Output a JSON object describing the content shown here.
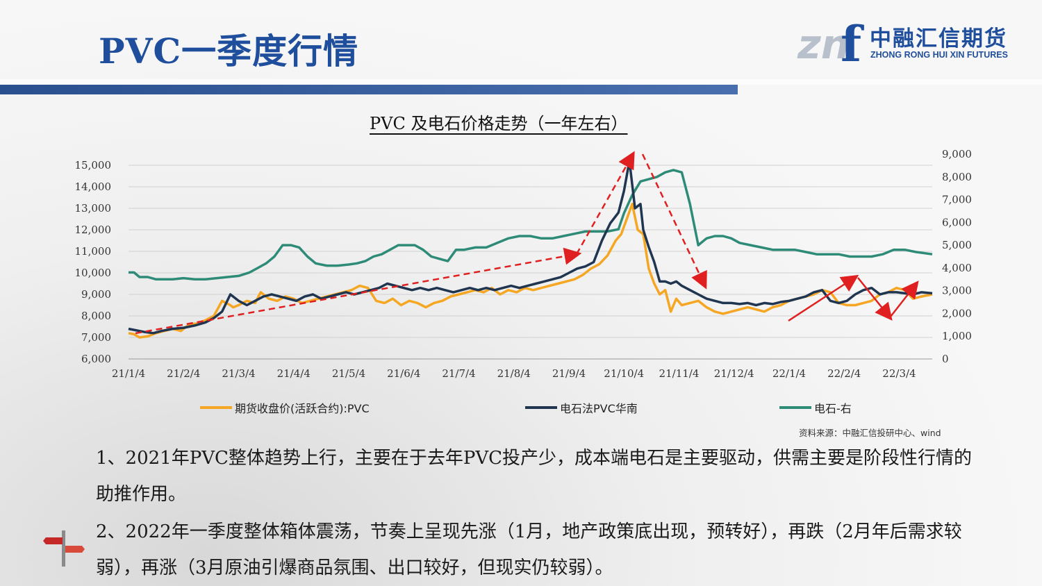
{
  "page": {
    "title": "PVC一季度行情",
    "logo": {
      "mark": "zn",
      "letter": "f",
      "cn": "中融汇信期货",
      "en": "ZHONG RONG HUI XIN FUTURES"
    },
    "chart_title": "PVC 及电石价格走势（一年左右）",
    "source": "资料来源：中融汇信投研中心、wind",
    "paragraphs": [
      "1、2021年PVC整体趋势上行，主要在于去年PVC投产少，成本端电石是主要驱动，供需主要是阶段性行情的助推作用。",
      "2、2022年一季度整体箱体震荡，节奏上呈现先涨（1月，地产政策底出现，预转好），再跌（2月年后需求较弱），再涨（3月原油引爆商品氛围、出口较好，但现实仍较弱）。"
    ]
  },
  "chart_data": {
    "type": "line",
    "categories": [
      "21/1/4",
      "21/2/4",
      "21/3/4",
      "21/4/4",
      "21/5/4",
      "21/6/4",
      "21/7/4",
      "21/8/4",
      "21/9/4",
      "21/10/4",
      "21/11/4",
      "21/12/4",
      "22/1/4",
      "22/2/4",
      "22/3/4"
    ],
    "left_ticks": [
      "15,000",
      "14,000",
      "13,000",
      "12,000",
      "11,000",
      "10,000",
      "9,000",
      "8,000",
      "7,000",
      "6,000"
    ],
    "right_ticks": [
      "9,000",
      "8,000",
      "7,000",
      "6,000",
      "5,000",
      "4,000",
      "3,000",
      "2,000",
      "1,000",
      "0"
    ],
    "ylim_left": [
      6000,
      15000
    ],
    "ylim_right": [
      0,
      9000
    ],
    "x_range": [
      0,
      14.6
    ],
    "colors": {
      "pvc_futures": "#f5a623",
      "pvc_south": "#1f3550",
      "carbide": "#2e8b77",
      "arrow_dashed": "#e02020",
      "arrow_solid": "#e02020"
    },
    "series": [
      {
        "name": "期货收盘价(活跃合约):PVC",
        "axis": "left",
        "x": [
          0,
          0.1,
          0.2,
          0.35,
          0.5,
          0.65,
          0.8,
          0.95,
          1.1,
          1.25,
          1.4,
          1.55,
          1.7,
          1.85,
          1.9,
          2.0,
          2.15,
          2.3,
          2.4,
          2.55,
          2.7,
          2.85,
          3.0,
          3.15,
          3.3,
          3.45,
          3.6,
          3.75,
          3.9,
          4.05,
          4.2,
          4.35,
          4.5,
          4.65,
          4.8,
          4.95,
          5.1,
          5.25,
          5.4,
          5.55,
          5.7,
          5.85,
          6.0,
          6.15,
          6.3,
          6.45,
          6.6,
          6.75,
          6.9,
          7.05,
          7.2,
          7.35,
          7.5,
          7.65,
          7.8,
          7.95,
          8.1,
          8.25,
          8.4,
          8.55,
          8.7,
          8.85,
          8.95,
          9.05,
          9.15,
          9.25,
          9.35,
          9.45,
          9.55,
          9.65,
          9.75,
          9.85,
          9.95,
          10.05,
          10.2,
          10.35,
          10.5,
          10.65,
          10.8,
          10.95,
          11.1,
          11.25,
          11.4,
          11.55,
          11.7,
          11.85,
          12.0,
          12.15,
          12.3,
          12.45,
          12.6,
          12.75,
          12.9,
          13.05,
          13.2,
          13.35,
          13.5,
          13.65,
          13.8,
          13.95,
          14.1,
          14.25,
          14.4,
          14.6
        ],
        "y": [
          7200,
          7150,
          7000,
          7050,
          7200,
          7300,
          7400,
          7300,
          7600,
          7650,
          7800,
          8000,
          8700,
          8500,
          8400,
          8500,
          8700,
          8600,
          9100,
          8800,
          8700,
          8900,
          8800,
          8600,
          8700,
          8800,
          8900,
          9000,
          9100,
          9200,
          9400,
          9300,
          8700,
          8600,
          8800,
          8500,
          8700,
          8600,
          8400,
          8600,
          8700,
          8900,
          9000,
          9100,
          9200,
          9100,
          9300,
          9000,
          9200,
          9100,
          9300,
          9200,
          9300,
          9400,
          9500,
          9600,
          9700,
          9900,
          10200,
          10400,
          10800,
          11500,
          11800,
          12500,
          13200,
          12000,
          11800,
          10200,
          9500,
          9000,
          9200,
          8200,
          8800,
          8500,
          8600,
          8700,
          8400,
          8200,
          8100,
          8200,
          8300,
          8400,
          8300,
          8200,
          8400,
          8500,
          8700,
          8800,
          8900,
          9000,
          9200,
          9100,
          8600,
          8500,
          8500,
          8600,
          8700,
          9000,
          9100,
          9300,
          9200,
          8800,
          8900,
          9000
        ],
        "line_points": "185,481 191,483 197,487 206,485 215,481 224,478 233,475 242,478 251,469 260,467 269,462 278,456 287,434 296,440 299,443 305,440 314,434 323,437 329,422 338,431 347,434 356,428 365,431 374,437 383,434 392,431 401,428 410,425 419,422 428,419 437,413 446,416 455,434 464,437 473,431 482,440 491,434 500,437 509,443 518,437 527,434 536,428 545,425 554,422 563,419 572,422 581,416 590,425 599,419 608,422 617,416 626,419 635,416 644,413 653,410 662,407 671,404 680,398 689,388 698,382 707,370 716,348 722,339 728,317 734,296 740,333 746,339 752,388 758,410 764,425 770,419 776,450 782,431 788,440 794,437 803,434 812,443 821,450 830,453 839,450 848,447 857,443 866,447 875,450 884,443 893,440 902,434 911,431 920,428 929,425 938,419 947,422 956,437 965,440 974,440 983,437 992,434 1001,425 1010,422 1019,416 1028,419 1037,431 1046,428 1055,425"
      },
      {
        "name": "电石法PVC华南",
        "axis": "left",
        "x": [
          0,
          0.1,
          0.3,
          0.45,
          0.6,
          0.8,
          1.0,
          1.2,
          1.4,
          1.55,
          1.7,
          1.85,
          2.0,
          2.15,
          2.3,
          2.45,
          2.6,
          2.75,
          2.9,
          3.05,
          3.2,
          3.35,
          3.5,
          3.65,
          3.8,
          3.95,
          4.1,
          4.25,
          4.4,
          4.55,
          4.7,
          4.85,
          5.0,
          5.15,
          5.3,
          5.45,
          5.6,
          5.75,
          5.9,
          6.05,
          6.2,
          6.35,
          6.5,
          6.65,
          6.8,
          6.95,
          7.1,
          7.25,
          7.4,
          7.55,
          7.7,
          7.85,
          8.0,
          8.15,
          8.3,
          8.45,
          8.6,
          8.75,
          8.9,
          9.0,
          9.1,
          9.2,
          9.3,
          9.35,
          9.45,
          9.55,
          9.65,
          9.75,
          9.85,
          9.95,
          10.05,
          10.2,
          10.35,
          10.5,
          10.65,
          10.8,
          10.95,
          11.1,
          11.25,
          11.4,
          11.55,
          11.7,
          11.85,
          12.0,
          12.15,
          12.3,
          12.45,
          12.6,
          12.75,
          12.9,
          13.05,
          13.2,
          13.35,
          13.5,
          13.65,
          13.8,
          13.95,
          14.1,
          14.25,
          14.4,
          14.6
        ],
        "y": [
          7400,
          7350,
          7250,
          7200,
          7300,
          7400,
          7450,
          7550,
          7700,
          7900,
          8200,
          9000,
          8700,
          8500,
          8700,
          8900,
          9000,
          8900,
          8800,
          8700,
          8900,
          9000,
          8800,
          8900,
          9000,
          9100,
          9000,
          9100,
          9200,
          9300,
          9500,
          9400,
          9300,
          9200,
          9300,
          9200,
          9300,
          9200,
          9100,
          9200,
          9300,
          9200,
          9300,
          9200,
          9300,
          9400,
          9300,
          9400,
          9500,
          9600,
          9700,
          9800,
          10000,
          10200,
          10300,
          10500,
          11500,
          12300,
          12800,
          13800,
          15200,
          13000,
          13200,
          12000,
          11200,
          10500,
          9600,
          9600,
          9500,
          9600,
          9400,
          9200,
          9000,
          8800,
          8700,
          8600,
          8600,
          8550,
          8600,
          8500,
          8600,
          8550,
          8650,
          8700,
          8800,
          8900,
          9100,
          9200,
          8700,
          8600,
          8700,
          9000,
          9200,
          9300,
          9000,
          9100,
          9100,
          9050,
          9000,
          9100,
          9050
        ],
        "line_points": "185,472 191,474 203,477 212,479 221,475 233,472 245,471 257,468 269,463 278,457 287,447 296,425 305,431 314,437 323,431 332,425 341,422 350,425 359,428 368,431 377,425 386,422 395,428 404,425 413,422 422,419 431,422 440,419 449,416 458,413 467,407 476,410 485,413 494,416 503,413 512,416 521,413 530,416 539,419 548,416 557,413 566,416 575,413 584,416 593,413 602,410 611,413 620,410 629,407 638,404 647,401 656,398 665,391 674,385 683,382 692,376 701,345 710,321 719,306 725,275 731,232 737,298 743,292 746,329 752,354 758,376 764,403 770,403 776,407 782,403 788,410 797,416 806,422 815,428 824,431 833,434 842,434 851,435 860,434 869,437 878,434 887,435 896,432 905,431 914,428 923,425 932,419 941,416 950,431 959,434 968,431 977,422 986,416 995,413 1004,422 1013,419 1022,419 1031,421 1040,422 1049,419 1058,421"
      },
      {
        "name": "电石-右",
        "axis": "right",
        "x": [
          0,
          0.1,
          0.2,
          0.35,
          0.5,
          0.65,
          0.8,
          1.0,
          1.2,
          1.4,
          1.6,
          1.8,
          2.0,
          2.2,
          2.35,
          2.5,
          2.65,
          2.8,
          2.95,
          3.1,
          3.25,
          3.4,
          3.6,
          3.8,
          4.0,
          4.15,
          4.3,
          4.45,
          4.6,
          4.75,
          4.9,
          5.05,
          5.2,
          5.35,
          5.5,
          5.65,
          5.8,
          5.95,
          6.1,
          6.3,
          6.5,
          6.7,
          6.9,
          7.1,
          7.3,
          7.5,
          7.7,
          7.9,
          8.1,
          8.3,
          8.5,
          8.7,
          8.9,
          9.0,
          9.15,
          9.3,
          9.45,
          9.6,
          9.75,
          9.9,
          10.05,
          10.2,
          10.35,
          10.5,
          10.65,
          10.8,
          10.95,
          11.1,
          11.3,
          11.5,
          11.7,
          11.9,
          12.1,
          12.3,
          12.5,
          12.7,
          12.9,
          13.1,
          13.3,
          13.5,
          13.7,
          13.9,
          14.1,
          14.3,
          14.6
        ],
        "y": [
          3800,
          3800,
          3600,
          3600,
          3500,
          3500,
          3500,
          3550,
          3500,
          3500,
          3550,
          3600,
          3650,
          3800,
          4000,
          4200,
          4500,
          5000,
          5000,
          4900,
          4500,
          4200,
          4100,
          4100,
          4150,
          4200,
          4300,
          4500,
          4600,
          4800,
          5000,
          5000,
          5000,
          4800,
          4500,
          4400,
          4300,
          4800,
          4800,
          4900,
          4900,
          5100,
          5300,
          5400,
          5400,
          5300,
          5300,
          5400,
          5500,
          5600,
          5600,
          5600,
          5700,
          6400,
          7200,
          7800,
          7900,
          8000,
          8200,
          8300,
          8200,
          6800,
          5000,
          5300,
          5400,
          5400,
          5300,
          5100,
          5000,
          4900,
          4800,
          4800,
          4800,
          4700,
          4600,
          4600,
          4600,
          4500,
          4500,
          4500,
          4600,
          4800,
          4800,
          4700,
          4600
        ],
        "line_points": "185,394 191,394 197,401 206,401 215,404 224,404 233,404 245,403 257,404 269,404 281,403 293,401 305,399 317,394 326,388 335,381 344,371 353,355 362,355 371,358 380,371 389,381 401,384 413,384 425,383 434,381 443,378 452,371 461,368 470,361 479,355 488,355 497,355 506,361 515,371 524,374 533,378 542,361 551,361 563,358 575,358 587,352 599,345 611,342 623,342 635,345 647,345 659,342 671,338 683,335 695,335 707,335 719,332 725,309 734,283 743,263 752,260 761,257 770,250 779,247 788,250 797,296 806,355 815,345 824,342 833,342 842,345 851,352 863,355 875,358 887,361 899,361 911,361 923,365 935,368 947,368 959,368 971,371 983,371 995,371 1007,368 1019,361 1031,361 1043,365 1055,368"
      }
    ],
    "legend": [
      {
        "label": "期货收盘价(活跃合约):PVC",
        "color": "#f5a623"
      },
      {
        "label": "电石法PVC华南",
        "color": "#1f3550"
      },
      {
        "label": "电石-右",
        "color": "#2e8b77"
      }
    ]
  }
}
